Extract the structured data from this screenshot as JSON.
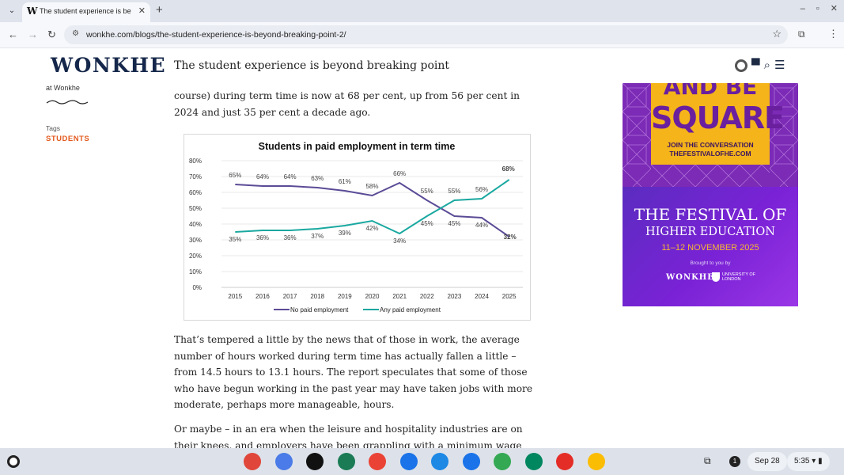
{
  "browser": {
    "tab_title": "The student experience is beyond breaking point",
    "tab_favicon": "W",
    "url": "wonkhe.com/blogs/the-student-experience-is-beyond-breaking-point-2/"
  },
  "header": {
    "logo": "WONKHE",
    "title": "The student experience is beyond breaking point"
  },
  "sidebar": {
    "author_suffix": "at Wonkhe",
    "tags_label": "Tags",
    "tag": "STUDENTS"
  },
  "article": {
    "para_top": "course) during term time is now at 68 per cent, up from 56 per cent in 2024 and just 35 per cent a decade ago.",
    "para_mid": "That’s tempered a little by the news that of those in work, the average number of hours worked during term time has actually fallen a little – from 14.5 hours to 13.1 hours. The report speculates that some of those who have begun working in the past year may have taken jobs with more moderate, perhaps more manageable, hours.",
    "para_bot": "Or maybe – in an era when the leisure and hospitality industries are on their knees, and employers have been grappling with a minimum wage rising much"
  },
  "chart_data": {
    "type": "line",
    "title": "Students in paid employment in term time",
    "x": [
      "2015",
      "2016",
      "2017",
      "2018",
      "2019",
      "2020",
      "2021",
      "2022",
      "2023",
      "2024",
      "2025"
    ],
    "yticks": [
      "0%",
      "10%",
      "20%",
      "30%",
      "40%",
      "50%",
      "60%",
      "70%",
      "80%"
    ],
    "ylim": [
      0,
      80
    ],
    "grid": true,
    "legend_position": "bottom",
    "series": [
      {
        "name": "No paid employment",
        "color": "#5b4b96",
        "values": [
          65,
          64,
          64,
          63,
          61,
          58,
          66,
          55,
          45,
          44,
          32
        ],
        "labels": [
          "65%",
          "64%",
          "64%",
          "63%",
          "61%",
          "58%",
          "66%",
          "55%",
          "45%",
          "44%",
          "32%"
        ]
      },
      {
        "name": "Any paid employment",
        "color": "#1aa8a0",
        "values": [
          35,
          36,
          36,
          37,
          39,
          42,
          34,
          45,
          55,
          56,
          68
        ],
        "labels": [
          "35%",
          "36%",
          "36%",
          "37%",
          "39%",
          "42%",
          "34%",
          "45%",
          "55%",
          "56%",
          "68%"
        ]
      }
    ]
  },
  "ad": {
    "line1": "AND BE",
    "line2": "SQUARE",
    "join1": "JOIN THE CONVERSATION",
    "join2": "THEFESTIVALOFHE.COM",
    "the_festival": "THE FESTIVAL OF",
    "higher_ed": "HIGHER EDUCATION",
    "dates": "11–12 NOVEMBER 2025",
    "brought": "Brought to you by",
    "wonkhe": "WONKHE",
    "uol": "UNIVERSITY OF LONDON"
  },
  "taskbar": {
    "date": "Sep 28",
    "time": "5:35",
    "notifications": "1",
    "apps": [
      {
        "name": "chrome",
        "color": "#e0463a"
      },
      {
        "name": "gemini",
        "color": "#4a7be8"
      },
      {
        "name": "threads",
        "color": "#111111"
      },
      {
        "name": "app-grid",
        "color": "#1a7b55"
      },
      {
        "name": "gmail",
        "color": "#ea4335"
      },
      {
        "name": "calendar",
        "color": "#1a73e8"
      },
      {
        "name": "files",
        "color": "#1e88e5"
      },
      {
        "name": "chat",
        "color": "#1a73e8"
      },
      {
        "name": "meet",
        "color": "#34a853"
      },
      {
        "name": "play-store",
        "color": "#01875f"
      },
      {
        "name": "youtube",
        "color": "#e52d27"
      },
      {
        "name": "photos",
        "color": "#fbbc04"
      }
    ]
  }
}
